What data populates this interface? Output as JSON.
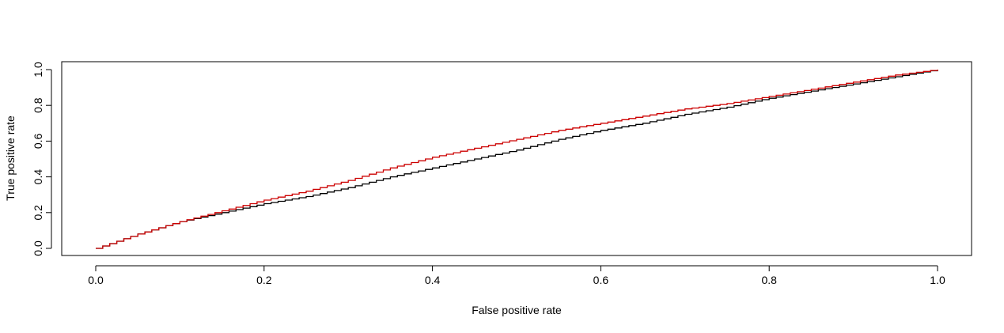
{
  "chart_data": {
    "type": "line",
    "title": "",
    "xlabel": "False positive rate",
    "ylabel": "True positive rate",
    "xlim": [
      0,
      1
    ],
    "ylim": [
      0,
      1
    ],
    "x_ticks": [
      "0.0",
      "0.2",
      "0.4",
      "0.6",
      "0.8",
      "1.0"
    ],
    "y_ticks": [
      "0.0",
      "0.2",
      "0.4",
      "0.6",
      "0.8",
      "1.0"
    ],
    "grid": false,
    "legend": "none",
    "series": [
      {
        "color": "#000000",
        "x": [
          0.0,
          0.05,
          0.1,
          0.15,
          0.2,
          0.25,
          0.3,
          0.35,
          0.4,
          0.45,
          0.5,
          0.55,
          0.6,
          0.65,
          0.7,
          0.75,
          0.8,
          0.85,
          0.9,
          0.95,
          1.0
        ],
        "y": [
          0.0,
          0.08,
          0.15,
          0.2,
          0.25,
          0.29,
          0.34,
          0.4,
          0.45,
          0.5,
          0.55,
          0.61,
          0.66,
          0.7,
          0.75,
          0.79,
          0.84,
          0.88,
          0.92,
          0.96,
          1.0
        ]
      },
      {
        "color": "#cc0000",
        "x": [
          0.0,
          0.05,
          0.1,
          0.15,
          0.2,
          0.25,
          0.3,
          0.35,
          0.4,
          0.45,
          0.5,
          0.55,
          0.6,
          0.65,
          0.7,
          0.75,
          0.8,
          0.85,
          0.9,
          0.95,
          1.0
        ],
        "y": [
          0.0,
          0.08,
          0.15,
          0.21,
          0.27,
          0.32,
          0.38,
          0.45,
          0.51,
          0.56,
          0.61,
          0.66,
          0.7,
          0.74,
          0.78,
          0.81,
          0.85,
          0.89,
          0.93,
          0.97,
          1.0
        ]
      }
    ]
  }
}
